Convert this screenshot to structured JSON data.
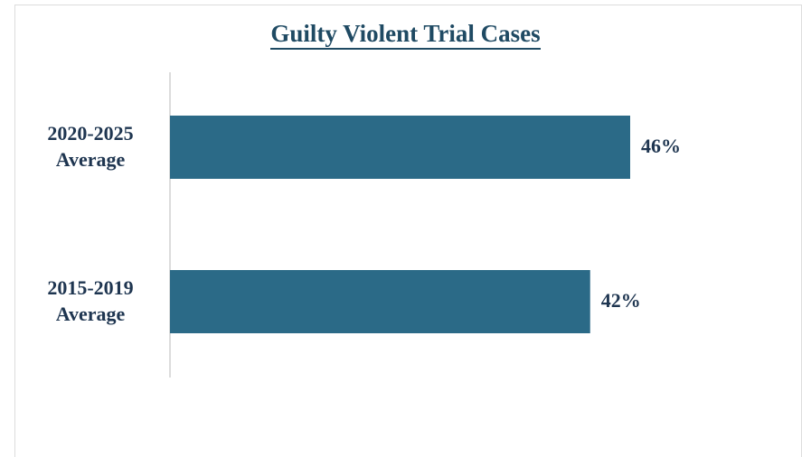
{
  "chart_data": {
    "type": "bar",
    "orientation": "horizontal",
    "title": "Guilty Violent Trial Cases",
    "categories": [
      "2020-2025 Average",
      "2015-2019 Average"
    ],
    "values": [
      46,
      42
    ],
    "value_labels": [
      "46%",
      "42%"
    ],
    "color": "#2b6a87"
  }
}
